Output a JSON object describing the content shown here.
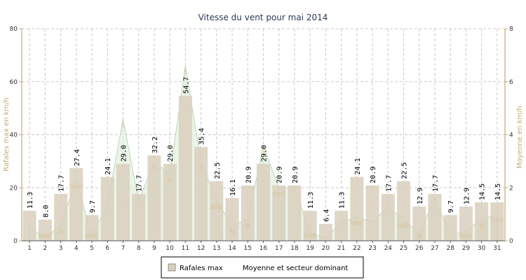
{
  "chart_data": {
    "type": "bar",
    "title": "Vitesse du vent pour mai 2014",
    "ylabel": "Rafales max en km/h",
    "y2label": "Moyenne en km/h",
    "ylim": [
      0,
      80
    ],
    "y2lim": [
      0,
      8
    ],
    "yticks": [
      "0",
      "20",
      "40",
      "60",
      "80"
    ],
    "y2ticks": [
      "0",
      "2",
      "4",
      "6",
      "8"
    ],
    "grid": true,
    "legend_position": "bottom",
    "categories": [
      "1",
      "2",
      "3",
      "4",
      "5",
      "6",
      "7",
      "8",
      "9",
      "10",
      "11",
      "12",
      "13",
      "14",
      "15",
      "16",
      "17",
      "18",
      "19",
      "20",
      "21",
      "22",
      "23",
      "24",
      "25",
      "26",
      "27",
      "28",
      "29",
      "30",
      "31"
    ],
    "series": [
      {
        "name": "Rafales max",
        "color": "#d9cfbd",
        "values": [
          11.3,
          8.0,
          17.7,
          27.4,
          9.7,
          24.1,
          29.0,
          17.7,
          32.2,
          29.0,
          54.7,
          35.4,
          22.5,
          16.1,
          20.9,
          29.0,
          20.9,
          20.9,
          11.3,
          6.4,
          11.3,
          24.1,
          20.9,
          17.7,
          22.5,
          12.9,
          17.7,
          9.7,
          12.9,
          14.5,
          14.5
        ],
        "labels": [
          "11.3",
          "8.0",
          "17.7",
          "27.4",
          "9.7",
          "24.1",
          "29.0",
          "17.7",
          "32.2",
          "29.0",
          "54.7",
          "35.4",
          "22.5",
          "16.1",
          "20.9",
          "29.0",
          "20.9",
          "20.9",
          "11.3",
          "6.4",
          "11.3",
          "24.1",
          "20.9",
          "17.7",
          "22.5",
          "12.9",
          "17.7",
          "9.7",
          "12.9",
          "14.5",
          "14.5"
        ]
      },
      {
        "name": "Moyenne et secteur dominant",
        "color": "#e3f0df",
        "axis": "y2",
        "values": [
          0.5,
          0.1,
          0.6,
          2.3,
          0.2,
          1.4,
          4.6,
          1.5,
          3.0,
          2.5,
          6.6,
          3.0,
          1.5,
          0.6,
          0.8,
          3.6,
          2.0,
          2.0,
          0.3,
          0.1,
          0.7,
          0.9,
          0.7,
          1.3,
          0.8,
          0.3,
          1.6,
          0.2,
          0.4,
          0.8,
          1.0
        ],
        "sectors": [
          "",
          "NNE",
          "N",
          "SSO",
          "NNE",
          "",
          "S",
          "",
          "S",
          "S",
          "S",
          "S",
          "NNE",
          "N",
          "N",
          "S",
          "SSO",
          "",
          "NNE",
          "",
          "",
          "NNE",
          "",
          "",
          "NNE",
          "N",
          "",
          "",
          "NNE",
          "N",
          "SSO"
        ]
      }
    ]
  }
}
